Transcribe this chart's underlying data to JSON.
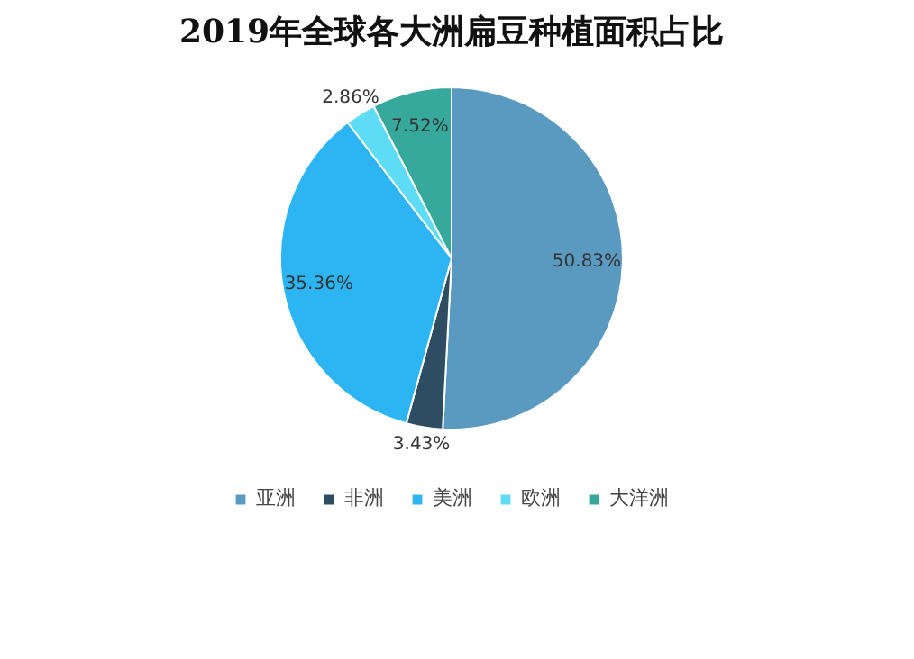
{
  "chart_data": {
    "type": "pie",
    "title": "2019年全球各大洲扁豆种植面积占比",
    "categories": [
      "亚洲",
      "非洲",
      "美洲",
      "欧洲",
      "大洋洲"
    ],
    "values": [
      50.83,
      3.43,
      35.36,
      2.86,
      7.52
    ],
    "colors": [
      "#5a9ac0",
      "#2e4d63",
      "#2cb5f2",
      "#5fdcf5",
      "#36a89c"
    ],
    "value_labels": [
      "50.83%",
      "3.43%",
      "35.36%",
      "2.86%",
      "7.52%"
    ],
    "legend": "bottom"
  }
}
